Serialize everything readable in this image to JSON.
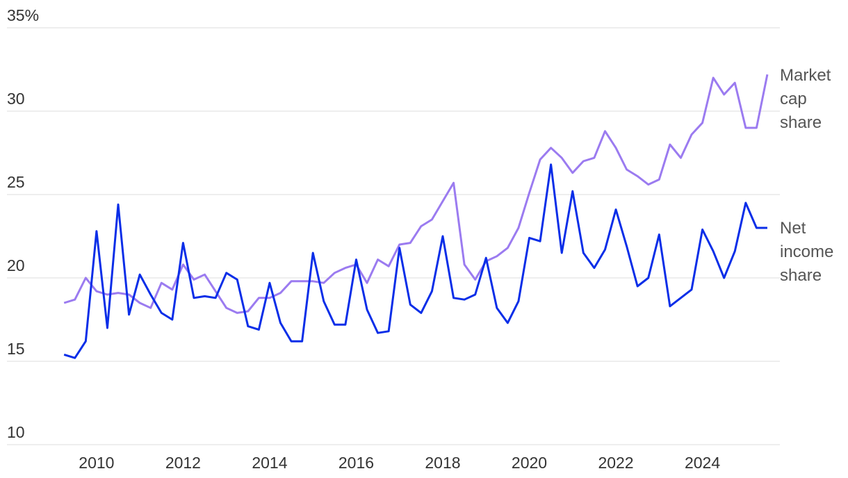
{
  "chart_data": {
    "type": "line",
    "x": [
      2009.25,
      2009.5,
      2009.75,
      2010,
      2010.25,
      2010.5,
      2010.75,
      2011,
      2011.25,
      2011.5,
      2011.75,
      2012,
      2012.25,
      2012.5,
      2012.75,
      2013,
      2013.25,
      2013.5,
      2013.75,
      2014,
      2014.25,
      2014.5,
      2014.75,
      2015,
      2015.25,
      2015.5,
      2015.75,
      2016,
      2016.25,
      2016.5,
      2016.75,
      2017,
      2017.25,
      2017.5,
      2017.75,
      2018,
      2018.25,
      2018.5,
      2018.75,
      2019,
      2019.25,
      2019.5,
      2019.75,
      2020,
      2020.25,
      2020.5,
      2020.75,
      2021,
      2021.25,
      2021.5,
      2021.75,
      2022,
      2022.25,
      2022.5,
      2022.75,
      2023,
      2023.25,
      2023.5,
      2023.75,
      2024,
      2024.25,
      2024.5,
      2024.75,
      2025,
      2025.25,
      2025.5
    ],
    "series": [
      {
        "name": "Market cap share",
        "color": "#9b7bf0",
        "values": [
          18.5,
          18.7,
          20.0,
          19.2,
          19.0,
          19.1,
          19.0,
          18.5,
          18.2,
          19.7,
          19.3,
          20.8,
          19.9,
          20.2,
          19.2,
          18.2,
          17.9,
          18.0,
          18.8,
          18.8,
          19.1,
          19.8,
          19.8,
          19.8,
          19.7,
          20.3,
          20.6,
          20.8,
          19.7,
          21.1,
          20.7,
          22.0,
          22.1,
          23.1,
          23.5,
          24.6,
          25.7,
          20.8,
          19.9,
          21.0,
          21.3,
          21.8,
          23.0,
          25.1,
          27.1,
          27.8,
          27.2,
          26.3,
          27.0,
          27.2,
          28.8,
          27.8,
          26.5,
          26.1,
          25.6,
          25.9,
          28.0,
          27.2,
          28.6,
          29.3,
          32.0,
          31.0,
          31.7,
          29.0,
          29.0,
          32.2
        ]
      },
      {
        "name": "Net income share",
        "color": "#0a2ee8",
        "values": [
          15.4,
          15.2,
          16.2,
          22.8,
          17.0,
          24.4,
          17.8,
          20.2,
          19.0,
          17.9,
          17.5,
          22.1,
          18.8,
          18.9,
          18.8,
          20.3,
          19.9,
          17.1,
          16.9,
          19.7,
          17.3,
          16.2,
          16.2,
          21.5,
          18.6,
          17.2,
          17.2,
          21.1,
          18.1,
          16.7,
          16.8,
          21.8,
          18.4,
          17.9,
          19.2,
          22.5,
          18.8,
          18.7,
          19.0,
          21.2,
          18.2,
          17.3,
          18.6,
          22.4,
          22.2,
          26.8,
          21.5,
          25.2,
          21.5,
          20.6,
          21.7,
          24.1,
          21.9,
          19.5,
          20.0,
          22.6,
          18.3,
          18.8,
          19.3,
          22.9,
          21.6,
          20.0,
          21.6,
          24.5,
          23.0,
          23.0
        ]
      }
    ],
    "xlim": [
      2007.93,
      2025.79
    ],
    "xticks": [
      2010,
      2012,
      2014,
      2016,
      2018,
      2020,
      2022,
      2024
    ],
    "ylim": [
      10,
      35
    ],
    "yticks": [
      10,
      15,
      20,
      25,
      30,
      {
        "value": 35,
        "label": "35%"
      }
    ],
    "grid": true
  }
}
